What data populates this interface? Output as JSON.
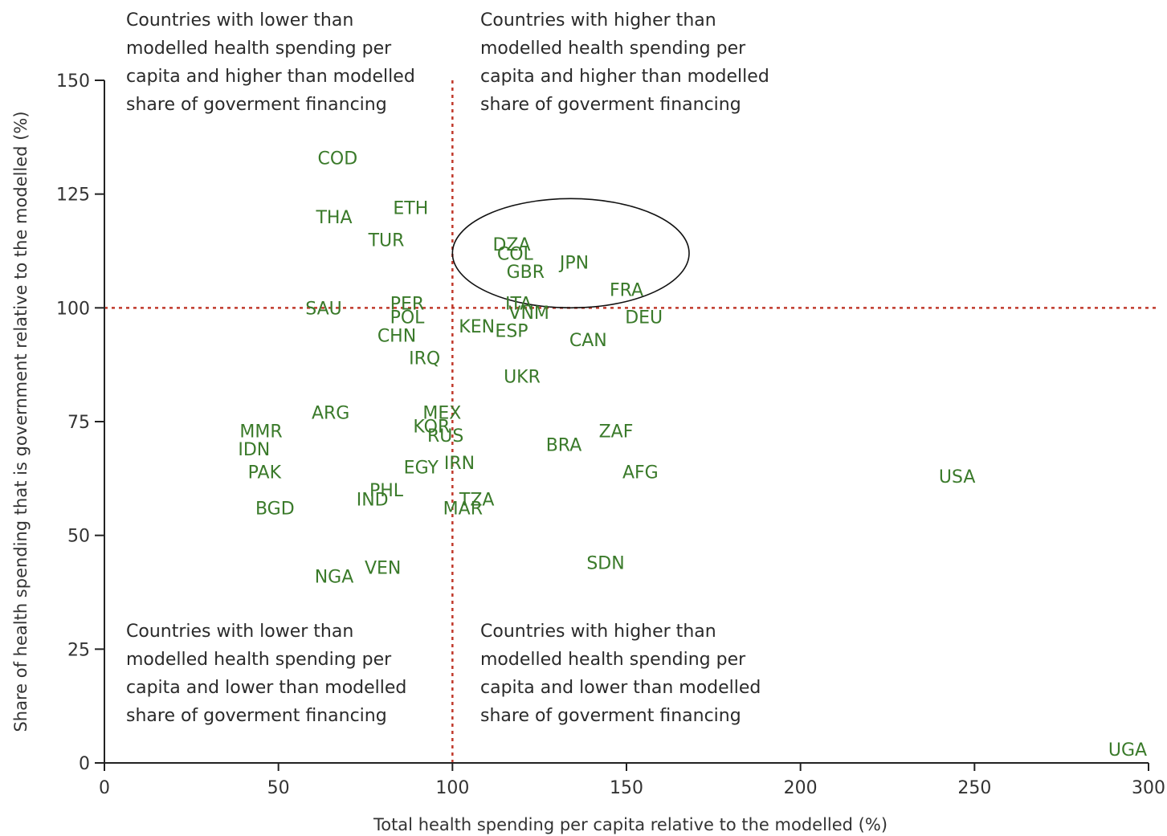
{
  "chart_data": {
    "type": "scatter",
    "title": "",
    "xlabel": "Total health spending per capita relative to the modelled (%)",
    "ylabel": "Share of health spending that is government relative to the modelled (%)",
    "xlim": [
      0,
      300
    ],
    "ylim": [
      0,
      150
    ],
    "xticks": [
      "0",
      "50",
      "100",
      "150",
      "200",
      "250",
      "300"
    ],
    "yticks": [
      "0",
      "25",
      "50",
      "75",
      "100",
      "125",
      "150"
    ],
    "grid": false,
    "label_color": "#3a7a2a",
    "reference_line_color": "#c0392b",
    "reference_lines": {
      "x": 100,
      "y": 100
    },
    "quadrant_annotations": [
      {
        "position": "top-left",
        "lines": [
          "Countries with lower than",
          "modelled health spending per",
          "capita and higher than modelled",
          "share of goverment financing"
        ]
      },
      {
        "position": "top-right",
        "lines": [
          "Countries with higher than",
          "modelled health spending per",
          "capita and higher than modelled",
          "share of goverment financing"
        ]
      },
      {
        "position": "bottom-left",
        "lines": [
          "Countries with lower than",
          "modelled health spending per",
          "capita and lower than modelled",
          "share of goverment financing"
        ]
      },
      {
        "position": "bottom-right",
        "lines": [
          "Countries with higher than",
          "modelled health spending per",
          "capita and lower than modelled",
          "share of goverment financing"
        ]
      }
    ],
    "highlight_ellipse": {
      "cx": 134,
      "cy": 112,
      "rx": 34,
      "ry": 12
    },
    "points": [
      {
        "label": "COD",
        "x": 67,
        "y": 133
      },
      {
        "label": "THA",
        "x": 66,
        "y": 120
      },
      {
        "label": "ETH",
        "x": 88,
        "y": 122
      },
      {
        "label": "TUR",
        "x": 81,
        "y": 115
      },
      {
        "label": "DZA",
        "x": 117,
        "y": 114
      },
      {
        "label": "COL",
        "x": 118,
        "y": 112
      },
      {
        "label": "GBR",
        "x": 121,
        "y": 108
      },
      {
        "label": "JPN",
        "x": 135,
        "y": 110
      },
      {
        "label": "FRA",
        "x": 150,
        "y": 104
      },
      {
        "label": "SAU",
        "x": 63,
        "y": 100
      },
      {
        "label": "PER",
        "x": 87,
        "y": 101
      },
      {
        "label": "POL",
        "x": 87,
        "y": 98
      },
      {
        "label": "ITA",
        "x": 119,
        "y": 101
      },
      {
        "label": "VNM",
        "x": 122,
        "y": 99
      },
      {
        "label": "DEU",
        "x": 155,
        "y": 98
      },
      {
        "label": "CHN",
        "x": 84,
        "y": 94
      },
      {
        "label": "KEN",
        "x": 107,
        "y": 96
      },
      {
        "label": "ESP",
        "x": 117,
        "y": 95
      },
      {
        "label": "CAN",
        "x": 139,
        "y": 93
      },
      {
        "label": "IRQ",
        "x": 92,
        "y": 89
      },
      {
        "label": "UKR",
        "x": 120,
        "y": 85
      },
      {
        "label": "ARG",
        "x": 65,
        "y": 77
      },
      {
        "label": "MEX",
        "x": 97,
        "y": 77
      },
      {
        "label": "KOR",
        "x": 94,
        "y": 74
      },
      {
        "label": "RUS",
        "x": 98,
        "y": 72
      },
      {
        "label": "MMR",
        "x": 45,
        "y": 73
      },
      {
        "label": "IDN",
        "x": 43,
        "y": 69
      },
      {
        "label": "ZAF",
        "x": 147,
        "y": 73
      },
      {
        "label": "BRA",
        "x": 132,
        "y": 70
      },
      {
        "label": "EGY",
        "x": 91,
        "y": 65
      },
      {
        "label": "IRN",
        "x": 102,
        "y": 66
      },
      {
        "label": "PAK",
        "x": 46,
        "y": 64
      },
      {
        "label": "AFG",
        "x": 154,
        "y": 64
      },
      {
        "label": "USA",
        "x": 245,
        "y": 63
      },
      {
        "label": "PHL",
        "x": 81,
        "y": 60
      },
      {
        "label": "IND",
        "x": 77,
        "y": 58
      },
      {
        "label": "TZA",
        "x": 107,
        "y": 58
      },
      {
        "label": "MAR",
        "x": 103,
        "y": 56
      },
      {
        "label": "BGD",
        "x": 49,
        "y": 56
      },
      {
        "label": "VEN",
        "x": 80,
        "y": 43
      },
      {
        "label": "NGA",
        "x": 66,
        "y": 41
      },
      {
        "label": "SDN",
        "x": 144,
        "y": 44
      },
      {
        "label": "UGA",
        "x": 294,
        "y": 3
      }
    ]
  }
}
